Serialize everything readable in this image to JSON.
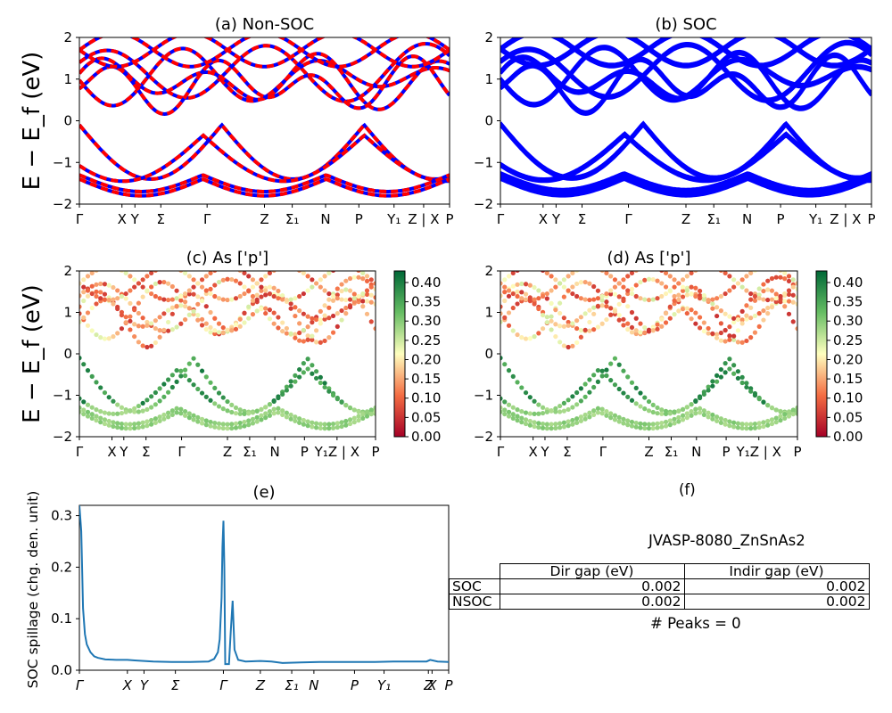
{
  "chart_data": [
    {
      "type": "line",
      "title": "(a) Non-SOC",
      "ylabel": "E − E_f (eV)",
      "ylim": [
        -2,
        2
      ],
      "yticks": [
        -2,
        -1,
        0,
        1,
        2
      ],
      "kpath": [
        "Γ",
        "X",
        "Y",
        "Σ",
        "Γ",
        "Z",
        "Σ₁",
        "N",
        "P",
        "Y₁",
        "Z | X",
        "P"
      ],
      "line_style": "red dashed over blue solid"
    },
    {
      "type": "line",
      "title": "(b) SOC",
      "ylim": [
        -2,
        2
      ],
      "yticks": [
        -2,
        -1,
        0,
        1,
        2
      ],
      "kpath": [
        "Γ",
        "X",
        "Y",
        "Σ",
        "Γ",
        "Z",
        "Σ₁",
        "N",
        "P",
        "Y₁",
        "Z | X",
        "P"
      ],
      "line_color": "#0000ff"
    },
    {
      "type": "scatter",
      "title": "(c)  As ['p']",
      "ylabel": "E − E_f (eV)",
      "ylim": [
        -2,
        2
      ],
      "yticks": [
        -2,
        -1,
        0,
        1,
        2
      ],
      "kpath": [
        "Γ",
        "X",
        "Y",
        "Σ",
        "Γ",
        "Z",
        "Σ₁",
        "N",
        "P",
        "Y₁Z | X",
        "P"
      ],
      "colorbar": {
        "colormap": "RdYlGn",
        "min": 0.0,
        "max": 0.43,
        "ticks": [
          "0.00",
          "0.05",
          "0.10",
          "0.15",
          "0.20",
          "0.25",
          "0.30",
          "0.35",
          "0.40"
        ]
      }
    },
    {
      "type": "scatter",
      "title": "(d) As ['p']",
      "ylim": [
        -2,
        2
      ],
      "yticks": [
        -2,
        -1,
        0,
        1,
        2
      ],
      "kpath": [
        "Γ",
        "X",
        "Y",
        "Σ",
        "Γ",
        "Z",
        "Σ₁",
        "N",
        "P",
        "Y₁Z | X",
        "P"
      ],
      "colorbar": {
        "colormap": "RdYlGn",
        "min": 0.0,
        "max": 0.43,
        "ticks": [
          "0.00",
          "0.05",
          "0.10",
          "0.15",
          "0.20",
          "0.25",
          "0.30",
          "0.35",
          "0.40"
        ]
      }
    },
    {
      "type": "line",
      "title": "(e)",
      "ylabel": "SOC spillage (chg. den. unit)",
      "ylim": [
        0,
        0.32
      ],
      "yticks": [
        "0.0",
        "0.1",
        "0.2",
        "0.3"
      ],
      "kpath": [
        "Γ",
        "X",
        "Y",
        "Σ",
        "Γ",
        "Z",
        "Σ₁",
        "N",
        "P",
        "Y₁",
        "Z",
        "X",
        "P"
      ],
      "kpos": [
        0,
        0.13,
        0.175,
        0.26,
        0.39,
        0.49,
        0.575,
        0.635,
        0.745,
        0.825,
        0.945,
        0.955,
        1.0
      ],
      "x": [
        0,
        0.005,
        0.01,
        0.015,
        0.02,
        0.03,
        0.04,
        0.05,
        0.07,
        0.1,
        0.13,
        0.15,
        0.175,
        0.2,
        0.25,
        0.3,
        0.35,
        0.365,
        0.375,
        0.38,
        0.385,
        0.3875,
        0.39,
        0.3925,
        0.395,
        0.4,
        0.405,
        0.41,
        0.415,
        0.42,
        0.43,
        0.45,
        0.49,
        0.52,
        0.55,
        0.6,
        0.65,
        0.7,
        0.75,
        0.8,
        0.85,
        0.9,
        0.94,
        0.95,
        0.97,
        1.0
      ],
      "values": [
        0.32,
        0.27,
        0.12,
        0.07,
        0.05,
        0.035,
        0.027,
        0.024,
        0.021,
        0.02,
        0.02,
        0.019,
        0.018,
        0.017,
        0.016,
        0.016,
        0.017,
        0.022,
        0.035,
        0.06,
        0.14,
        0.24,
        0.29,
        0.2,
        0.012,
        0.012,
        0.012,
        0.075,
        0.135,
        0.04,
        0.02,
        0.017,
        0.018,
        0.017,
        0.014,
        0.015,
        0.016,
        0.016,
        0.016,
        0.016,
        0.017,
        0.017,
        0.017,
        0.02,
        0.017,
        0.016
      ]
    }
  ],
  "panel_f": {
    "title": "(f)",
    "material": "JVASP-8080_ZnSnAs2",
    "table": {
      "headers": [
        "Dir gap (eV)",
        "Indir gap (eV)"
      ],
      "rows": [
        {
          "label": "SOC",
          "dir": "0.002",
          "indir": "0.002"
        },
        {
          "label": "NSOC",
          "dir": "0.002",
          "indir": "0.002"
        }
      ]
    },
    "peaks": "# Peaks = 0"
  }
}
